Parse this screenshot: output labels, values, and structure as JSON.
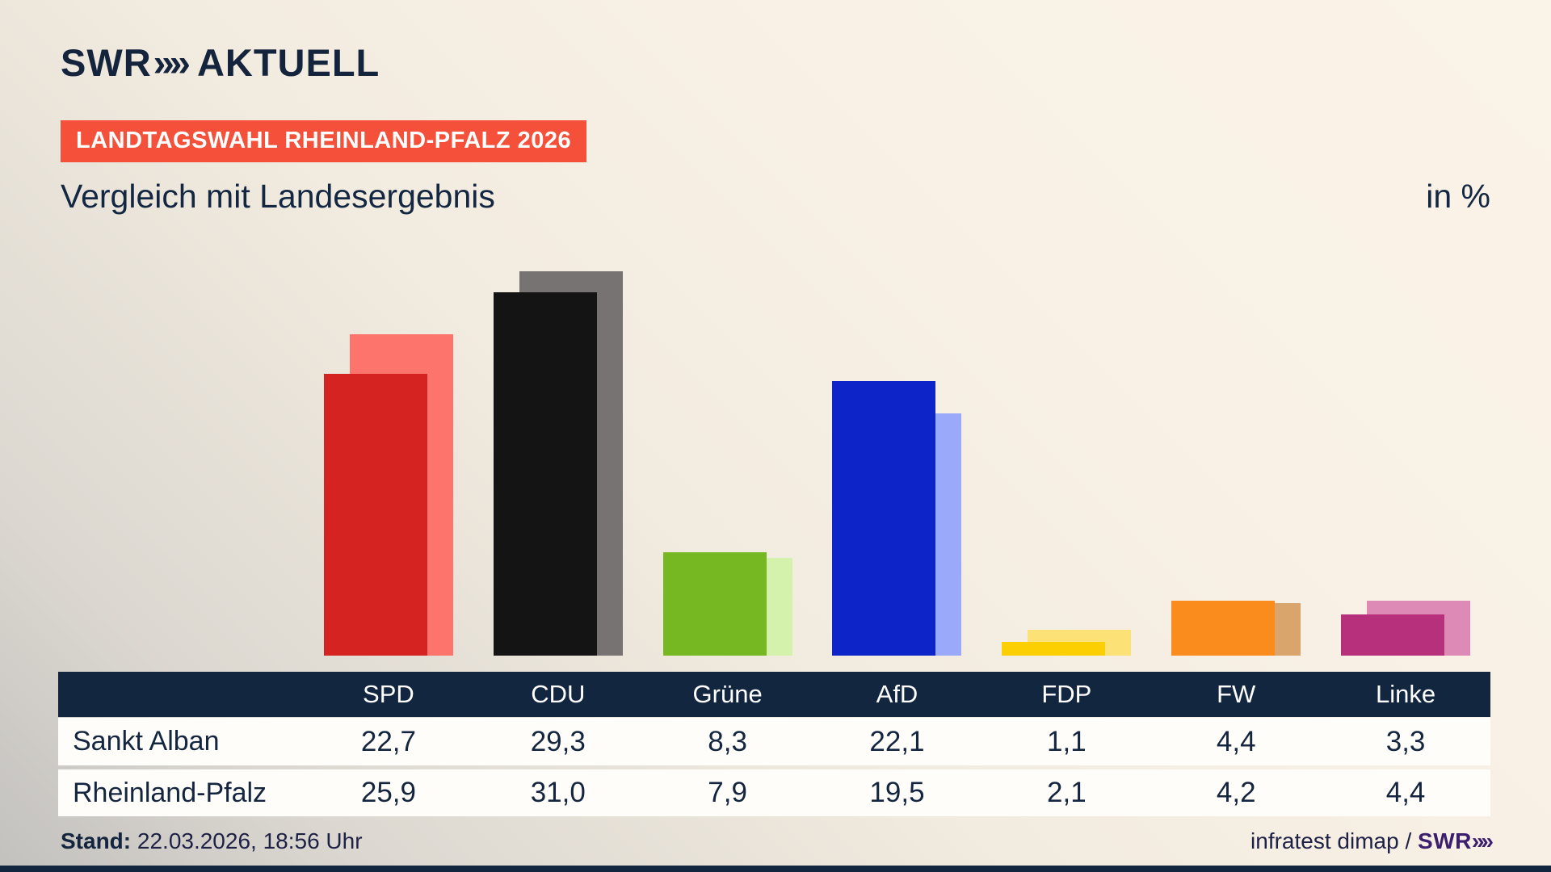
{
  "header": {
    "brand": "SWR",
    "brand_chevrons": "»»",
    "brand_suffix": "AKTUELL",
    "badge": "LANDTAGSWAHL RHEINLAND-PFALZ 2026",
    "title": "Vergleich mit Landesergebnis",
    "unit_label": "in %"
  },
  "chart_data": {
    "type": "bar",
    "title": "Vergleich mit Landesergebnis",
    "unit": "%",
    "categories": [
      "SPD",
      "CDU",
      "Grüne",
      "AfD",
      "FDP",
      "FW",
      "Linke"
    ],
    "series": [
      {
        "name": "Sankt Alban",
        "values": [
          22.7,
          29.3,
          8.3,
          22.1,
          1.1,
          4.4,
          3.3
        ],
        "colors": [
          "#d42321",
          "#141414",
          "#76b822",
          "#0d24c8",
          "#fccf03",
          "#f98c1c",
          "#b7307c"
        ]
      },
      {
        "name": "Rheinland-Pfalz",
        "values": [
          25.9,
          31.0,
          7.9,
          19.5,
          2.1,
          4.2,
          4.4
        ],
        "colors": [
          "#fc746b",
          "#787373",
          "#d5f2ad",
          "#9aa9f9",
          "#fbe176",
          "#d9a56c",
          "#dd8ab7"
        ]
      }
    ],
    "ylim": [
      0,
      31
    ],
    "grid": false,
    "legend": "table below chart",
    "value_labels": "shown in table, comma decimals"
  },
  "table": {
    "header_labels": [
      "",
      "SPD",
      "CDU",
      "Grüne",
      "AfD",
      "FDP",
      "FW",
      "Linke"
    ],
    "rows": [
      {
        "label": "Sankt Alban",
        "values": [
          "22,7",
          "29,3",
          "8,3",
          "22,1",
          "1,1",
          "4,4",
          "3,3"
        ]
      },
      {
        "label": "Rheinland-Pfalz",
        "values": [
          "25,9",
          "31,0",
          "7,9",
          "19,5",
          "2,1",
          "4,2",
          "4,4"
        ]
      }
    ]
  },
  "footer": {
    "stand_label": "Stand:",
    "stand_value": "22.03.2026, 18:56 Uhr",
    "source": "infratest dimap / ",
    "source_brand": "SWR",
    "source_brand_chevrons": "»»"
  }
}
